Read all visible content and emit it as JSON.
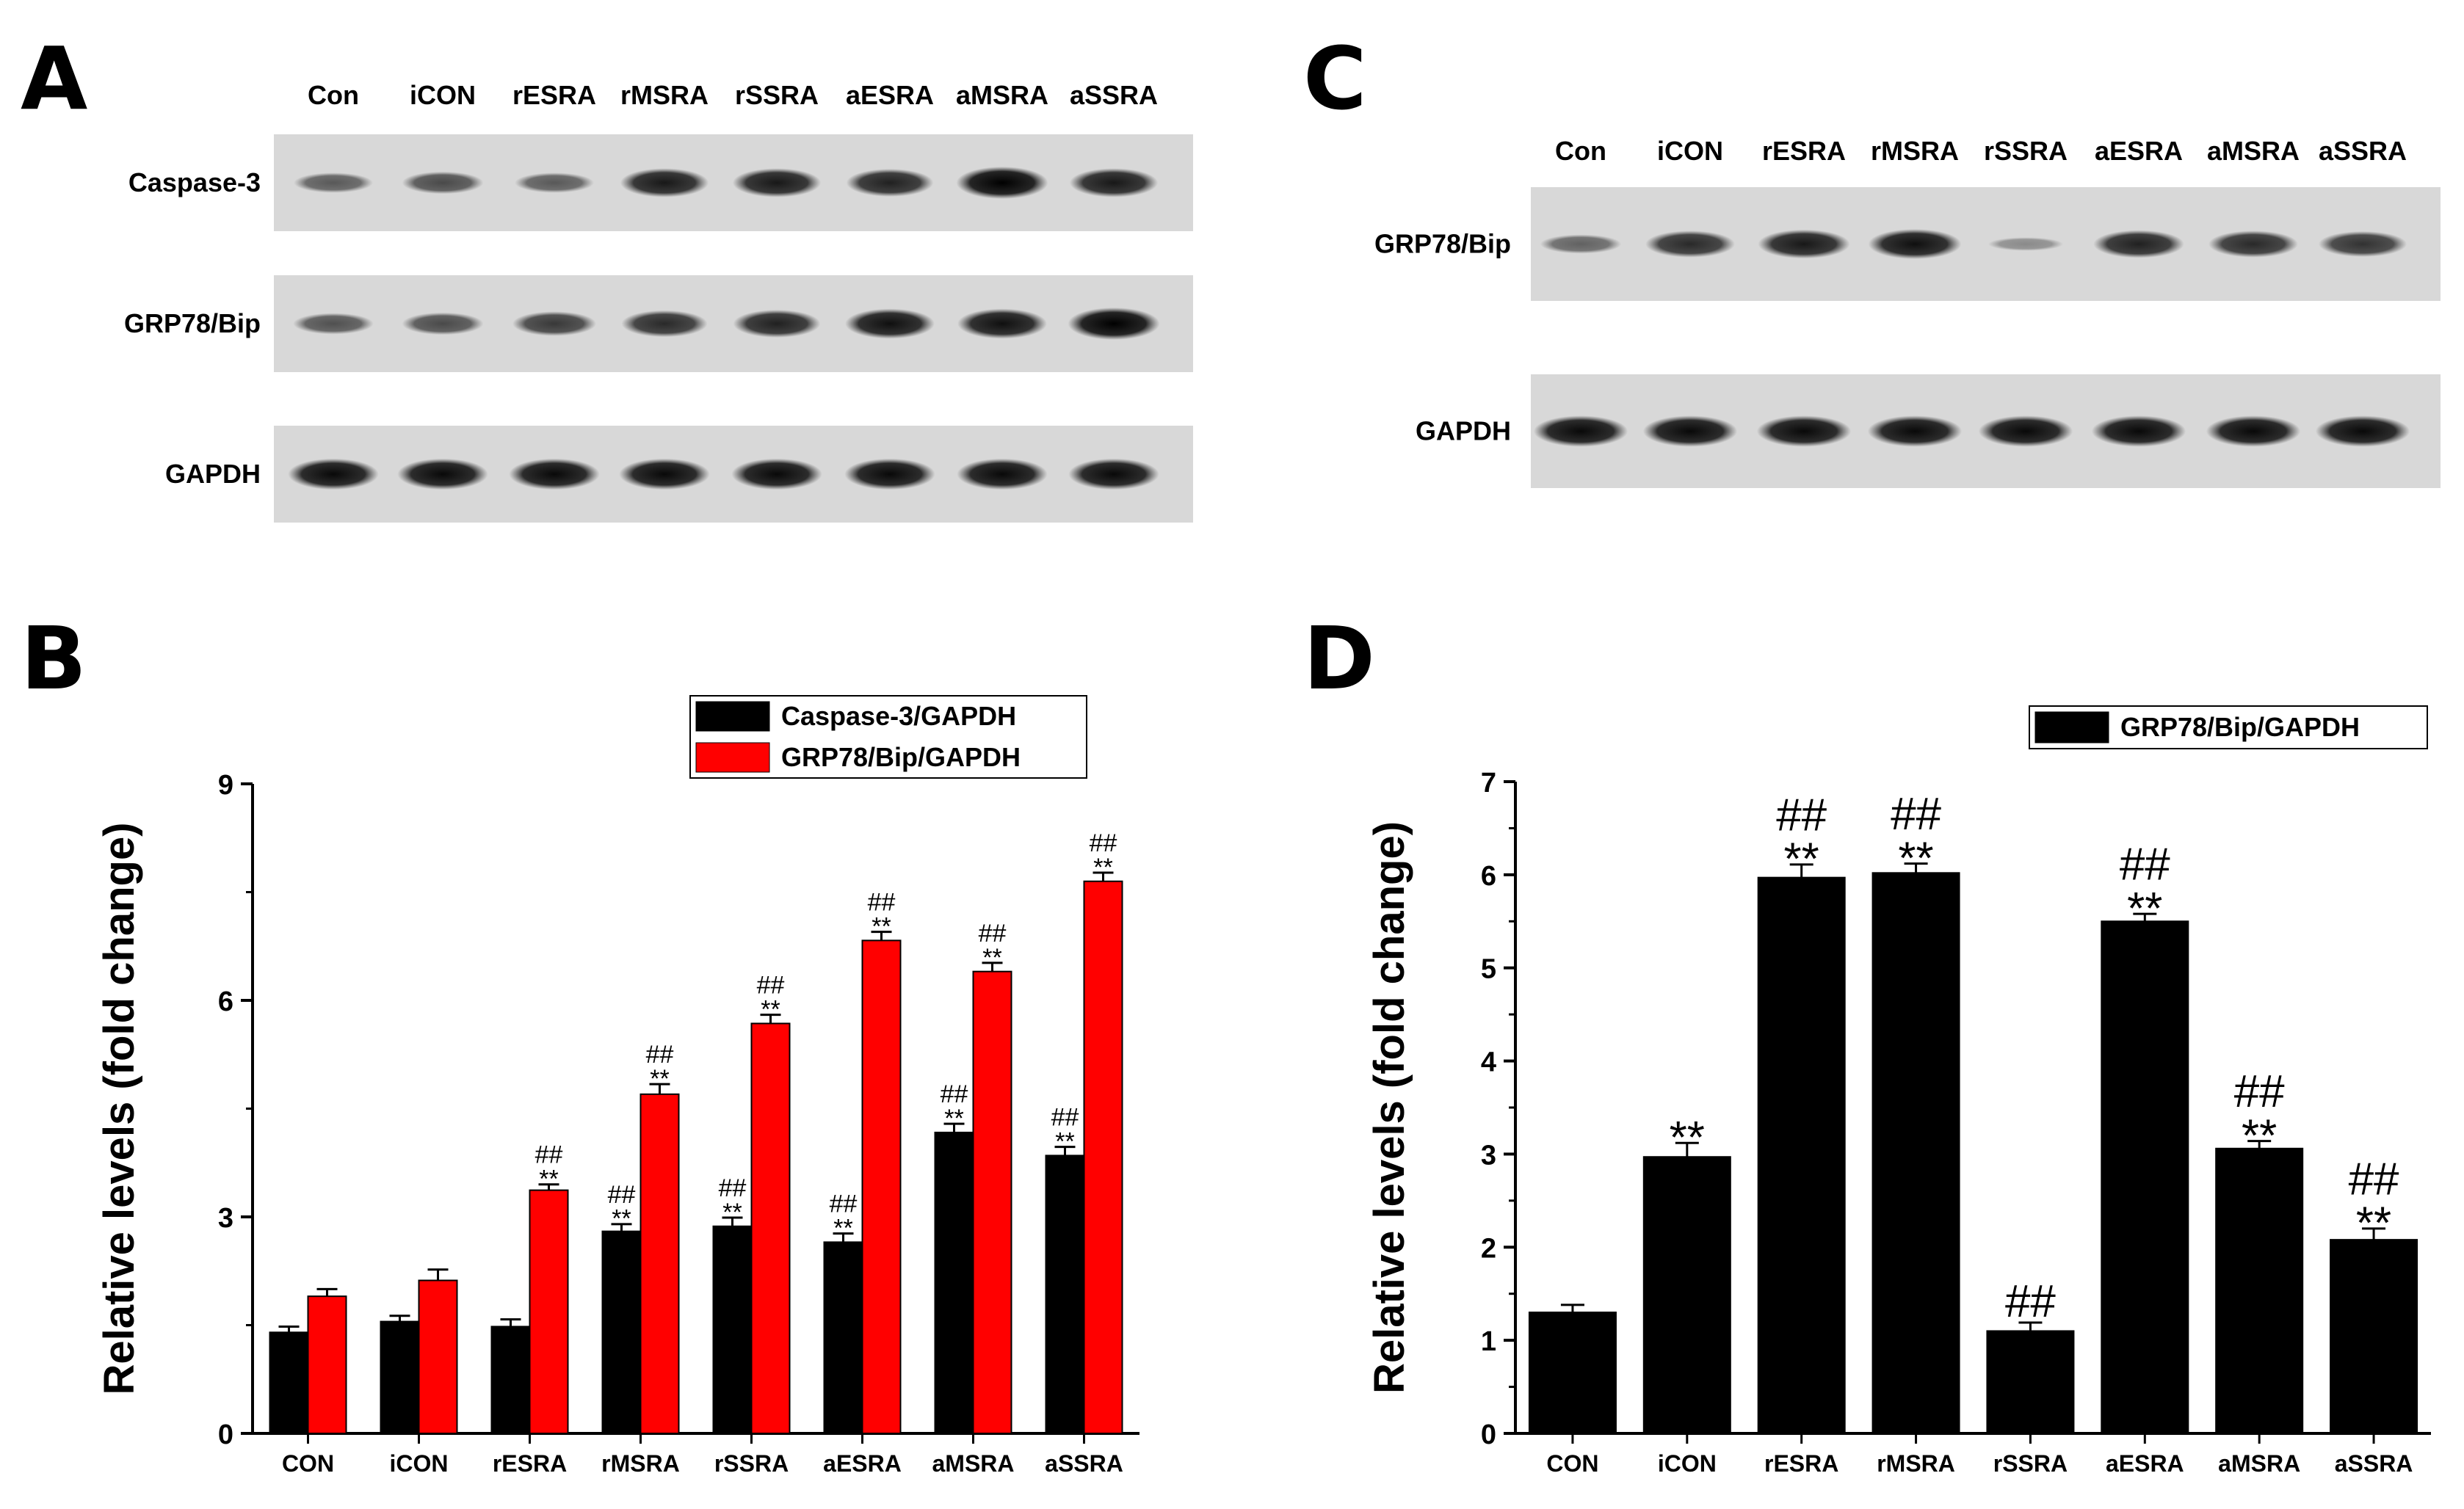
{
  "panels": {
    "a": "A",
    "b": "B",
    "c": "C",
    "d": "D"
  },
  "blot_a": {
    "lanes": [
      "Con",
      "iCON",
      "rESRA",
      "rMSRA",
      "rSSRA",
      "aESRA",
      "aMSRA",
      "aSSRA"
    ],
    "rows": [
      {
        "label": "Caspase-3",
        "intensity": [
          0.45,
          0.55,
          0.45,
          0.85,
          0.85,
          0.8,
          1.0,
          0.85
        ]
      },
      {
        "label": "GRP78/Bip",
        "intensity": [
          0.5,
          0.55,
          0.65,
          0.75,
          0.8,
          0.9,
          0.9,
          1.0
        ]
      },
      {
        "label": "GAPDH",
        "intensity": [
          0.95,
          0.95,
          0.95,
          0.95,
          0.95,
          0.95,
          0.95,
          0.95
        ]
      }
    ]
  },
  "blot_c": {
    "lanes": [
      "Con",
      "iCON",
      "rESRA",
      "rMSRA",
      "rSSRA",
      "aESRA",
      "aMSRA",
      "aSSRA"
    ],
    "rows": [
      {
        "label": "GRP78/Bip",
        "intensity": [
          0.4,
          0.75,
          0.85,
          0.9,
          0.15,
          0.8,
          0.75,
          0.7
        ]
      },
      {
        "label": "GAPDH",
        "intensity": [
          0.95,
          0.95,
          0.95,
          0.95,
          0.95,
          0.95,
          0.95,
          0.95
        ]
      }
    ]
  },
  "chart_data": [
    {
      "panel": "B",
      "type": "bar",
      "categories": [
        "CON",
        "iCON",
        "rESRA",
        "rMSRA",
        "rSSRA",
        "aESRA",
        "aMSRA",
        "aSSRA"
      ],
      "series": [
        {
          "name": "Caspase-3/GAPDH",
          "color": "#000000",
          "values": [
            1.4,
            1.55,
            1.48,
            2.8,
            2.87,
            2.65,
            4.17,
            3.85
          ],
          "errors": [
            0.08,
            0.08,
            0.1,
            0.1,
            0.12,
            0.12,
            0.12,
            0.12
          ],
          "sig": [
            "",
            "",
            "",
            "##\n**",
            "##\n**",
            "##\n**",
            "##\n**",
            "##\n**"
          ]
        },
        {
          "name": "GRP78/Bip/GAPDH",
          "color": "#ff0000",
          "values": [
            1.9,
            2.12,
            3.37,
            4.7,
            5.68,
            6.83,
            6.4,
            7.65
          ],
          "errors": [
            0.1,
            0.15,
            0.08,
            0.14,
            0.12,
            0.12,
            0.12,
            0.12
          ],
          "sig": [
            "",
            "",
            "##\n**",
            "##\n**",
            "##\n**",
            "##\n**",
            "##\n**",
            "##\n**"
          ]
        }
      ],
      "ylabel": "Relative levels (fold change)",
      "xlabel": "",
      "ylim": [
        0,
        9
      ],
      "yticks": [
        "0",
        "3",
        "6",
        "9"
      ],
      "legend_position": "top-right",
      "grid": false
    },
    {
      "panel": "D",
      "type": "bar",
      "categories": [
        "CON",
        "iCON",
        "rESRA",
        "rMSRA",
        "rSSRA",
        "aESRA",
        "aMSRA",
        "aSSRA"
      ],
      "series": [
        {
          "name": "GRP78/Bip/GAPDH",
          "color": "#000000",
          "values": [
            1.3,
            2.97,
            5.97,
            6.02,
            1.1,
            5.5,
            3.06,
            2.08
          ],
          "errors": [
            0.08,
            0.15,
            0.14,
            0.1,
            0.09,
            0.08,
            0.08,
            0.12
          ],
          "sig": [
            "",
            "**",
            "##\n**",
            "##\n**",
            "##",
            "##\n**",
            "##\n**",
            "##\n**"
          ]
        }
      ],
      "ylabel": "Relative levels (fold change)",
      "xlabel": "",
      "ylim": [
        0,
        7
      ],
      "yticks": [
        "0",
        "1",
        "2",
        "3",
        "4",
        "5",
        "6",
        "7"
      ],
      "legend_position": "top-right",
      "grid": false
    }
  ]
}
